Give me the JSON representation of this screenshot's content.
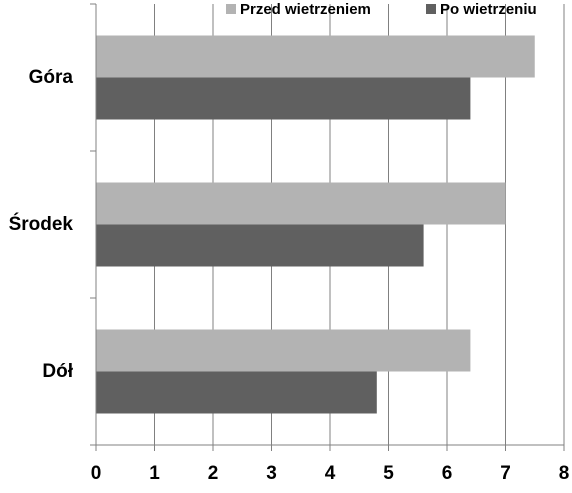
{
  "chart_data": {
    "type": "bar",
    "orientation": "horizontal",
    "categories": [
      "Góra",
      "Środek",
      "Dół"
    ],
    "series": [
      {
        "name": "Przed wietrzeniem",
        "color": "#b3b3b3",
        "values": [
          7.5,
          7.0,
          6.4
        ]
      },
      {
        "name": "Po wietrzeniu",
        "color": "#606060",
        "values": [
          6.4,
          5.6,
          4.8
        ]
      }
    ],
    "xlim": [
      0,
      8
    ],
    "xticks": [
      "0",
      "1",
      "2",
      "3",
      "4",
      "5",
      "6",
      "7",
      "8"
    ],
    "grid": "vertical",
    "legend_position": "top-right",
    "title": "",
    "xlabel": "",
    "ylabel": ""
  }
}
